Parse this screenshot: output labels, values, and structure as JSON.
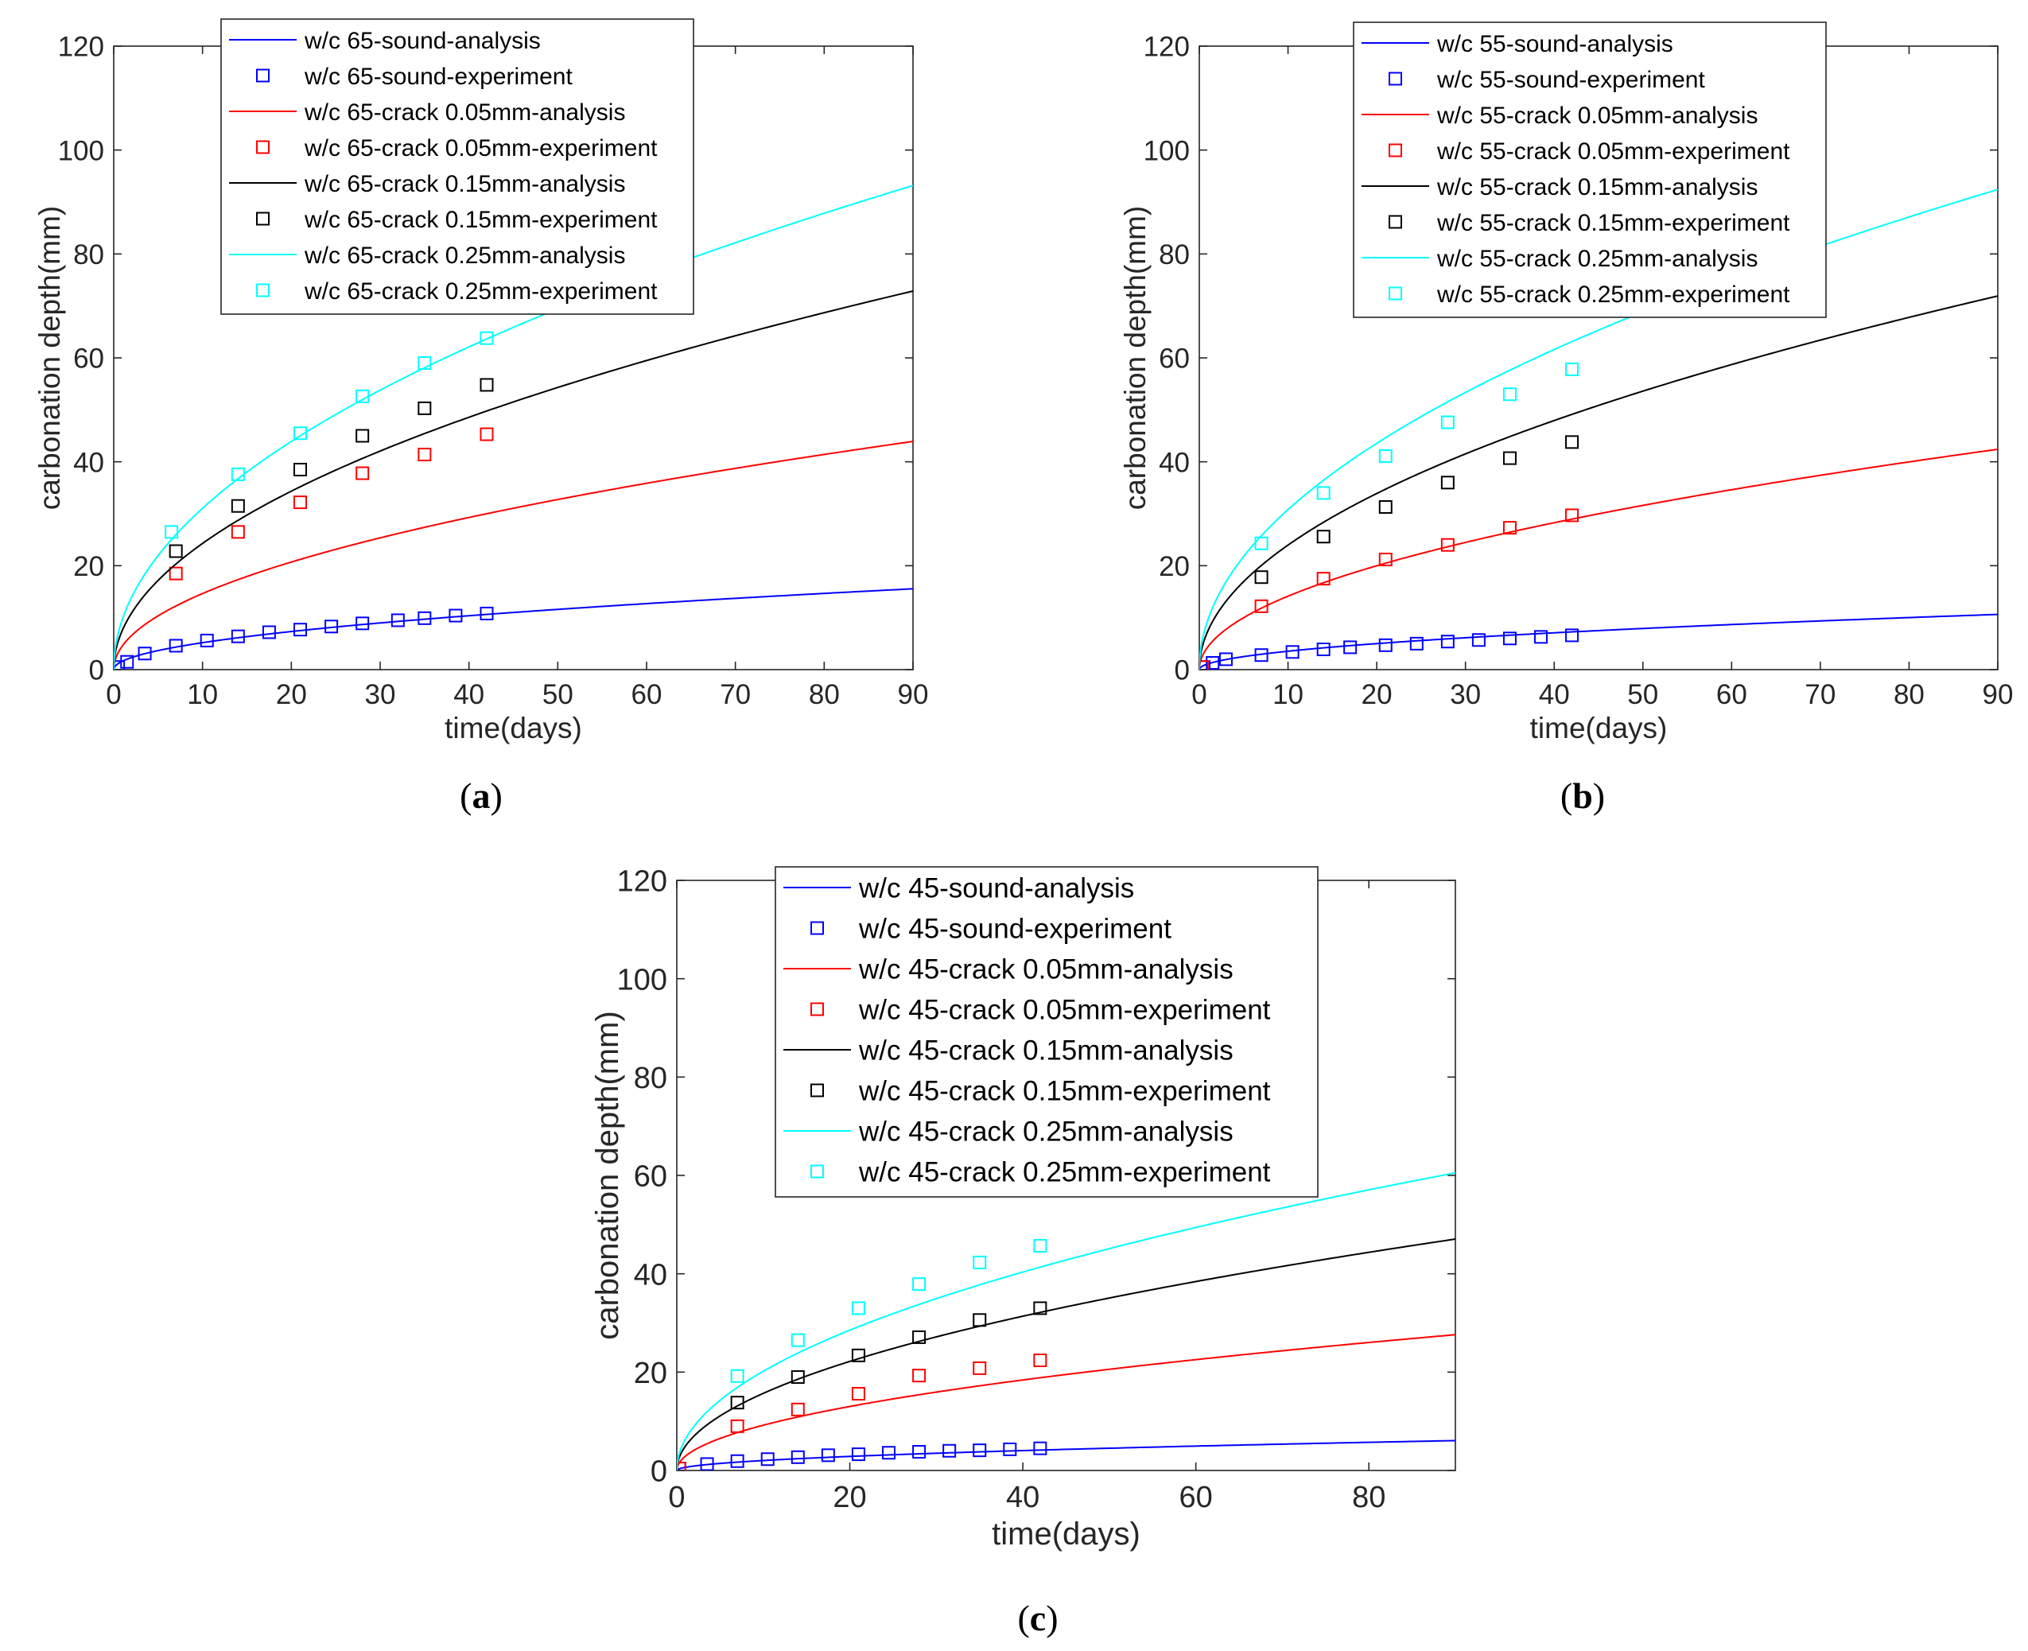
{
  "chart_data": [
    {
      "id": "a",
      "type": "line",
      "panel_label": "(a)",
      "xlabel": "time(days)",
      "ylabel": "carbonation depth(mm)",
      "xlim": [
        0,
        90
      ],
      "ylim": [
        0,
        120
      ],
      "xticks": [
        0,
        10,
        20,
        30,
        40,
        50,
        60,
        70,
        80,
        90
      ],
      "yticks": [
        0,
        20,
        40,
        60,
        80,
        100,
        120
      ],
      "legend_position": "top-center",
      "series": [
        {
          "name": "w/c 65-sound-analysis",
          "kind": "line",
          "color": "#0000ff",
          "coef": 1.64
        },
        {
          "name": "w/c 65-sound-experiment",
          "kind": "markers",
          "color": "#0000ff",
          "points": [
            [
              0.5,
              0.5
            ],
            [
              1.5,
              1.5
            ],
            [
              3.5,
              3.1
            ],
            [
              7,
              4.6
            ],
            [
              10.5,
              5.6
            ],
            [
              14,
              6.4
            ],
            [
              17.5,
              7.2
            ],
            [
              21,
              7.7
            ],
            [
              24.5,
              8.3
            ],
            [
              28,
              8.9
            ],
            [
              32,
              9.5
            ],
            [
              35,
              9.9
            ],
            [
              38.5,
              10.4
            ],
            [
              42,
              10.8
            ]
          ]
        },
        {
          "name": "w/c 65-crack 0.05mm-analysis",
          "kind": "line",
          "color": "#ff0000",
          "coef": 4.63
        },
        {
          "name": "w/c 65-crack 0.05mm-experiment",
          "kind": "markers",
          "color": "#ff0000",
          "points": [
            [
              7,
              18.5
            ],
            [
              14,
              26.5
            ],
            [
              21,
              32.2
            ],
            [
              28,
              37.8
            ],
            [
              35,
              41.4
            ],
            [
              42,
              45.3
            ]
          ]
        },
        {
          "name": "w/c 65-crack 0.15mm-analysis",
          "kind": "line",
          "color": "#000000",
          "coef": 7.68
        },
        {
          "name": "w/c 65-crack 0.15mm-experiment",
          "kind": "markers",
          "color": "#000000",
          "points": [
            [
              7,
              22.8
            ],
            [
              14,
              31.5
            ],
            [
              21,
              38.5
            ],
            [
              28,
              45
            ],
            [
              35,
              50.3
            ],
            [
              42,
              54.8
            ]
          ]
        },
        {
          "name": "w/c 65-crack 0.25mm-analysis",
          "kind": "line",
          "color": "#00ffff",
          "coef": 9.82
        },
        {
          "name": "w/c 65-crack 0.25mm-experiment",
          "kind": "markers",
          "color": "#00ffff",
          "points": [
            [
              6.5,
              26.5
            ],
            [
              14,
              37.6
            ],
            [
              21,
              45.5
            ],
            [
              28,
              52.6
            ],
            [
              35,
              59
            ],
            [
              42,
              63.8
            ]
          ]
        }
      ]
    },
    {
      "id": "b",
      "type": "line",
      "panel_label": "(b)",
      "xlabel": "time(days)",
      "ylabel": "carbonation depth(mm)",
      "xlim": [
        0,
        90
      ],
      "ylim": [
        0,
        120
      ],
      "xticks": [
        0,
        10,
        20,
        30,
        40,
        50,
        60,
        70,
        80,
        90
      ],
      "yticks": [
        0,
        20,
        40,
        60,
        80,
        100,
        120
      ],
      "legend_position": "top-center",
      "series": [
        {
          "name": "w/c 55-sound-analysis",
          "kind": "line",
          "color": "#0000ff",
          "coef": 1.12
        },
        {
          "name": "w/c 55-sound-experiment",
          "kind": "markers",
          "color": "#0000ff",
          "points": [
            [
              0.5,
              0.5
            ],
            [
              1.5,
              1.3
            ],
            [
              3,
              2
            ],
            [
              7,
              2.8
            ],
            [
              10.5,
              3.4
            ],
            [
              14,
              3.9
            ],
            [
              17,
              4.3
            ],
            [
              21,
              4.7
            ],
            [
              24.5,
              5
            ],
            [
              28,
              5.4
            ],
            [
              31.5,
              5.7
            ],
            [
              35,
              6
            ],
            [
              38.5,
              6.3
            ],
            [
              42,
              6.6
            ]
          ]
        },
        {
          "name": "w/c 55-crack 0.05mm-analysis",
          "kind": "line",
          "color": "#ff0000",
          "coef": 4.47
        },
        {
          "name": "w/c 55-crack 0.05mm-experiment",
          "kind": "markers",
          "color": "#ff0000",
          "points": [
            [
              0.3,
              0.5
            ],
            [
              7,
              12.2
            ],
            [
              14,
              17.5
            ],
            [
              21,
              21.2
            ],
            [
              28,
              24
            ],
            [
              35,
              27.3
            ],
            [
              42,
              29.7
            ]
          ]
        },
        {
          "name": "w/c 55-crack 0.15mm-analysis",
          "kind": "line",
          "color": "#000000",
          "coef": 7.58
        },
        {
          "name": "w/c 55-crack 0.15mm-experiment",
          "kind": "markers",
          "color": "#000000",
          "points": [
            [
              7,
              17.8
            ],
            [
              14,
              25.6
            ],
            [
              21,
              31.3
            ],
            [
              28,
              36
            ],
            [
              35,
              40.7
            ],
            [
              42,
              43.8
            ]
          ]
        },
        {
          "name": "w/c 55-crack 0.25mm-analysis",
          "kind": "line",
          "color": "#00ffff",
          "coef": 9.74
        },
        {
          "name": "w/c 55-crack 0.25mm-experiment",
          "kind": "markers",
          "color": "#00ffff",
          "points": [
            [
              7,
              24.3
            ],
            [
              14,
              34
            ],
            [
              21,
              41.1
            ],
            [
              28,
              47.6
            ],
            [
              35,
              53
            ],
            [
              42,
              57.8
            ]
          ]
        }
      ]
    },
    {
      "id": "c",
      "type": "line",
      "panel_label": "(c)",
      "xlabel": "time(days)",
      "ylabel": "carbonation depth(mm)",
      "xlim": [
        0,
        90
      ],
      "ylim": [
        0,
        120
      ],
      "xticks": [
        0,
        20,
        40,
        60,
        80
      ],
      "yticks": [
        0,
        20,
        40,
        60,
        80,
        100,
        120
      ],
      "legend_position": "top-center",
      "series": [
        {
          "name": "w/c 45-sound-analysis",
          "kind": "line",
          "color": "#0000ff",
          "coef": 0.64
        },
        {
          "name": "w/c 45-sound-experiment",
          "kind": "markers",
          "color": "#0000ff",
          "points": [
            [
              0.3,
              0.4
            ],
            [
              3.5,
              1.3
            ],
            [
              7,
              1.9
            ],
            [
              10.5,
              2.3
            ],
            [
              14,
              2.7
            ],
            [
              17.5,
              3.1
            ],
            [
              21,
              3.3
            ],
            [
              24.5,
              3.6
            ],
            [
              28,
              3.8
            ],
            [
              31.5,
              4
            ],
            [
              35,
              4.1
            ],
            [
              38.5,
              4.3
            ],
            [
              42,
              4.5
            ]
          ]
        },
        {
          "name": "w/c 45-crack 0.05mm-analysis",
          "kind": "line",
          "color": "#ff0000",
          "coef": 2.91
        },
        {
          "name": "w/c 45-crack 0.05mm-experiment",
          "kind": "markers",
          "color": "#ff0000",
          "points": [
            [
              0.3,
              0.4
            ],
            [
              7,
              9
            ],
            [
              14,
              12.4
            ],
            [
              21,
              15.6
            ],
            [
              28,
              19.3
            ],
            [
              35,
              20.8
            ],
            [
              42,
              22.4
            ]
          ]
        },
        {
          "name": "w/c 45-crack 0.15mm-analysis",
          "kind": "line",
          "color": "#000000",
          "coef": 4.96
        },
        {
          "name": "w/c 45-crack 0.15mm-experiment",
          "kind": "markers",
          "color": "#000000",
          "points": [
            [
              7,
              13.8
            ],
            [
              14,
              19
            ],
            [
              21,
              23.4
            ],
            [
              28,
              27.1
            ],
            [
              35,
              30.6
            ],
            [
              42,
              33
            ]
          ]
        },
        {
          "name": "w/c 45-crack 0.25mm-analysis",
          "kind": "line",
          "color": "#00ffff",
          "coef": 6.38
        },
        {
          "name": "w/c 45-crack 0.25mm-experiment",
          "kind": "markers",
          "color": "#00ffff",
          "points": [
            [
              7,
              19.2
            ],
            [
              14,
              26.5
            ],
            [
              21,
              33
            ],
            [
              28,
              37.9
            ],
            [
              35,
              42.3
            ],
            [
              42,
              45.7
            ]
          ]
        }
      ]
    }
  ]
}
